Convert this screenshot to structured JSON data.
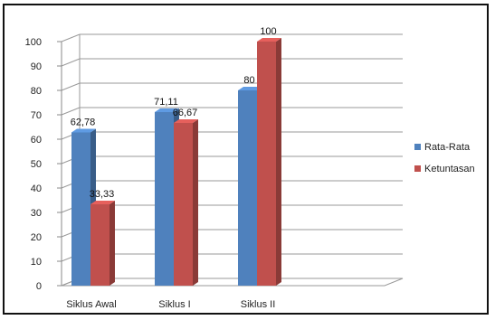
{
  "chart_data": {
    "type": "bar",
    "categories": [
      "Siklus Awal",
      "Siklus I",
      "Siklus II"
    ],
    "series": [
      {
        "name": "Rata-Rata",
        "values": [
          62.78,
          71.11,
          80
        ],
        "labels": [
          "62,78",
          "71,11",
          "80"
        ],
        "color": "#4f81bd"
      },
      {
        "name": "Ketuntasan",
        "values": [
          33.33,
          66.67,
          100
        ],
        "labels": [
          "33,33",
          "66,67",
          "100"
        ],
        "color": "#c0504d"
      }
    ],
    "ylim": [
      0,
      100
    ],
    "yticks": [
      0,
      10,
      20,
      30,
      40,
      50,
      60,
      70,
      80,
      90,
      100
    ],
    "grid": true,
    "legend": "right",
    "style": "3d"
  }
}
